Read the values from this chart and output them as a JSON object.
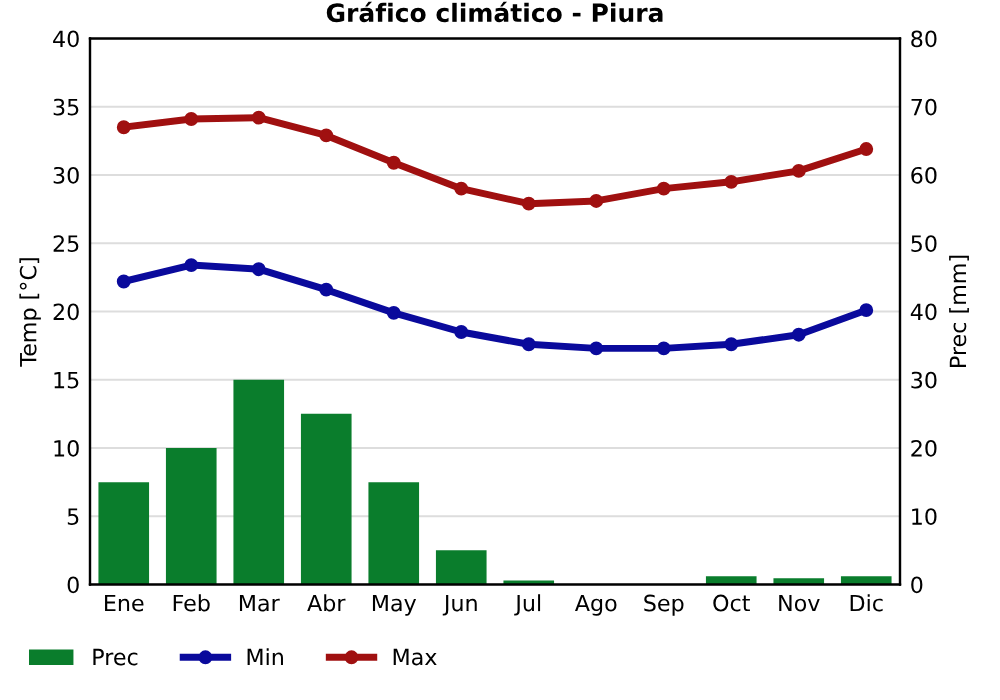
{
  "chart_data": {
    "type": "bar",
    "title": "Gráfico climático - Piura",
    "ylabel": "Temp [°C]",
    "y2label": "Prec [mm]",
    "categories": [
      "Ene",
      "Feb",
      "Mar",
      "Abr",
      "May",
      "Jun",
      "Jul",
      "Ago",
      "Sep",
      "Oct",
      "Nov",
      "Dic"
    ],
    "series": [
      {
        "name": "Prec",
        "axis": "y2",
        "color": "#0a7d2c",
        "values": [
          15,
          20,
          30,
          25,
          15,
          5,
          0.6,
          null,
          null,
          1.2,
          0.9,
          1.2
        ]
      },
      {
        "name": "Min",
        "type": "line",
        "color": "#0a0a9c",
        "values": [
          22.2,
          23.4,
          23.1,
          21.6,
          19.9,
          18.5,
          17.6,
          17.3,
          17.3,
          17.6,
          18.3,
          20.1
        ]
      },
      {
        "name": "Max",
        "type": "line",
        "color": "#a01010",
        "values": [
          33.5,
          34.1,
          34.2,
          32.9,
          30.9,
          29.0,
          27.9,
          28.1,
          29.0,
          29.5,
          30.3,
          31.9
        ]
      }
    ],
    "ylim": [
      0,
      40
    ],
    "yticks": [
      0,
      5,
      10,
      15,
      20,
      25,
      30,
      35,
      40
    ],
    "y2lim": [
      0,
      80
    ],
    "y2ticks": [
      0,
      10,
      20,
      30,
      40,
      50,
      60,
      70,
      80
    ],
    "grid": "y",
    "legend": "bottom",
    "marker": "circle",
    "line_style": "solid"
  }
}
